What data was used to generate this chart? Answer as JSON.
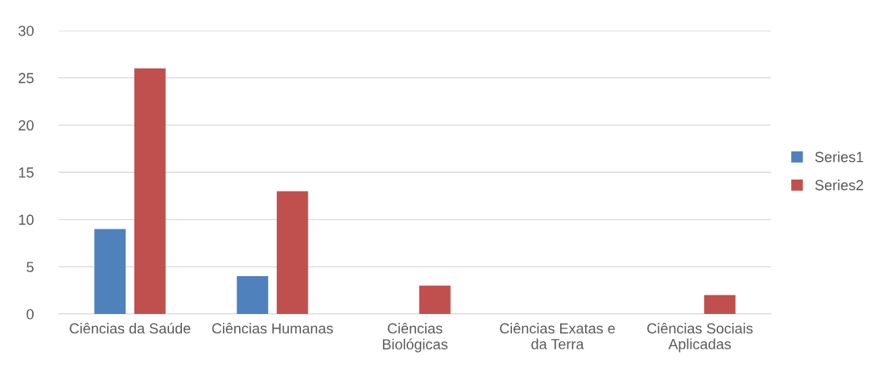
{
  "chart_data": {
    "type": "bar",
    "categories": [
      "Ciências da Saúde",
      "Ciências Humanas",
      "Ciências Biológicas",
      "Ciências Exatas e da Terra",
      "Ciências Sociais Aplicadas"
    ],
    "series": [
      {
        "name": "Series1",
        "color": "#4f81bd",
        "values": [
          9,
          4,
          0,
          0,
          0
        ]
      },
      {
        "name": "Series2",
        "color": "#c0504d",
        "values": [
          26,
          13,
          3,
          0,
          2
        ]
      }
    ],
    "ylim": [
      0,
      30
    ],
    "yticks": [
      0,
      5,
      10,
      15,
      20,
      25,
      30
    ],
    "grid": "y",
    "legend": "right"
  }
}
